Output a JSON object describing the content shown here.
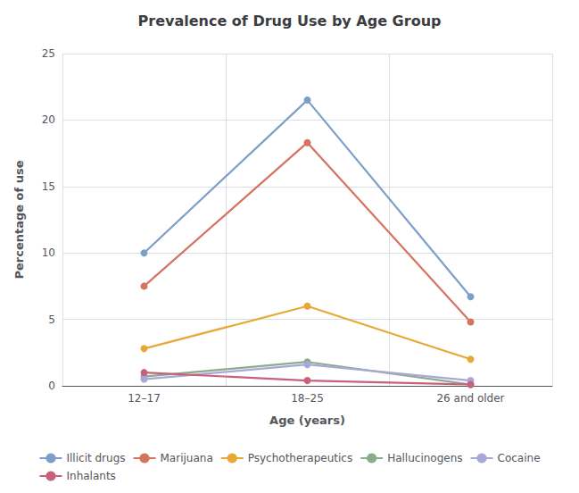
{
  "chart_data": {
    "type": "line",
    "title": "Prevalence of Drug Use by Age Group",
    "xlabel": "Age (years)",
    "ylabel": "Percentage of use",
    "categories": [
      "12–17",
      "18–25",
      "26 and older"
    ],
    "series": [
      {
        "name": "Illicit drugs",
        "color": "#7b9fc8",
        "values": [
          10,
          21.5,
          6.7
        ]
      },
      {
        "name": "Marijuana",
        "color": "#d4735e",
        "values": [
          7.5,
          18.3,
          4.8
        ]
      },
      {
        "name": "Psychotherapeutics",
        "color": "#e8a838",
        "values": [
          2.8,
          6.0,
          2.0
        ]
      },
      {
        "name": "Hallucinogens",
        "color": "#8bac8b",
        "values": [
          0.7,
          1.8,
          0.1
        ]
      },
      {
        "name": "Cocaine",
        "color": "#a8a8d8",
        "values": [
          0.5,
          1.6,
          0.4
        ]
      },
      {
        "name": "Inhalants",
        "color": "#c8607a",
        "values": [
          1.0,
          0.4,
          0.1
        ]
      }
    ],
    "ylim": [
      0,
      25
    ],
    "yticks": [
      0,
      5,
      10,
      15,
      20,
      25
    ],
    "grid": true,
    "legend": "bottom",
    "marker": "circle"
  }
}
